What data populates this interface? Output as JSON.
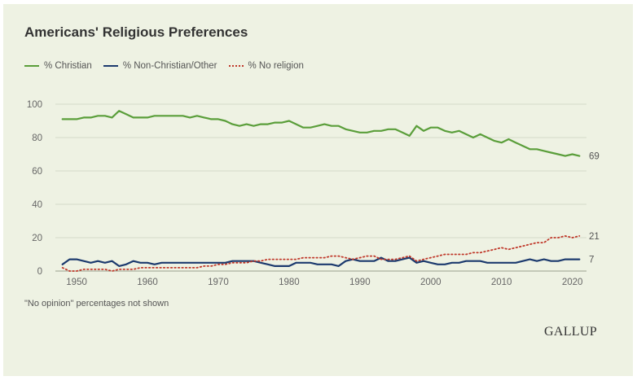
{
  "colors": {
    "background": "#eef2e3",
    "grid": "#d4d9c8",
    "axis_text": "#666666"
  },
  "chart_data": {
    "type": "line",
    "title": "Americans' Religious Preferences",
    "xlabel": "",
    "ylabel": "",
    "xlim": [
      1947,
      2022
    ],
    "ylim": [
      0,
      100
    ],
    "y_ticks": [
      0,
      20,
      40,
      60,
      80,
      100
    ],
    "x_ticks": [
      1950,
      1960,
      1970,
      1980,
      1990,
      2000,
      2010,
      2020
    ],
    "grid": true,
    "legend_position": "top-left",
    "series": [
      {
        "name": "% Christian",
        "color": "#5a9e3a",
        "style": "solid",
        "end_label": "69",
        "points": [
          [
            1948,
            91
          ],
          [
            1950,
            91
          ],
          [
            1951,
            92
          ],
          [
            1952,
            92
          ],
          [
            1953,
            93
          ],
          [
            1954,
            93
          ],
          [
            1955,
            92
          ],
          [
            1956,
            96
          ],
          [
            1957,
            94
          ],
          [
            1958,
            92
          ],
          [
            1960,
            92
          ],
          [
            1961,
            93
          ],
          [
            1965,
            93
          ],
          [
            1966,
            92
          ],
          [
            1967,
            93
          ],
          [
            1968,
            92
          ],
          [
            1969,
            91
          ],
          [
            1970,
            91
          ],
          [
            1971,
            90
          ],
          [
            1972,
            88
          ],
          [
            1973,
            87
          ],
          [
            1974,
            88
          ],
          [
            1975,
            87
          ],
          [
            1976,
            88
          ],
          [
            1977,
            88
          ],
          [
            1978,
            89
          ],
          [
            1979,
            89
          ],
          [
            1980,
            90
          ],
          [
            1981,
            88
          ],
          [
            1982,
            86
          ],
          [
            1983,
            86
          ],
          [
            1984,
            87
          ],
          [
            1985,
            88
          ],
          [
            1986,
            87
          ],
          [
            1987,
            87
          ],
          [
            1988,
            85
          ],
          [
            1989,
            84
          ],
          [
            1990,
            83
          ],
          [
            1991,
            83
          ],
          [
            1992,
            84
          ],
          [
            1993,
            84
          ],
          [
            1994,
            85
          ],
          [
            1995,
            85
          ],
          [
            1996,
            83
          ],
          [
            1997,
            81
          ],
          [
            1998,
            87
          ],
          [
            1999,
            84
          ],
          [
            2000,
            86
          ],
          [
            2001,
            86
          ],
          [
            2002,
            84
          ],
          [
            2003,
            83
          ],
          [
            2004,
            84
          ],
          [
            2005,
            82
          ],
          [
            2006,
            80
          ],
          [
            2007,
            82
          ],
          [
            2008,
            80
          ],
          [
            2009,
            78
          ],
          [
            2010,
            77
          ],
          [
            2011,
            79
          ],
          [
            2012,
            77
          ],
          [
            2013,
            75
          ],
          [
            2014,
            73
          ],
          [
            2015,
            73
          ],
          [
            2016,
            72
          ],
          [
            2017,
            71
          ],
          [
            2018,
            70
          ],
          [
            2019,
            69
          ],
          [
            2020,
            70
          ],
          [
            2021,
            69
          ]
        ]
      },
      {
        "name": "% Non-Christian/Other",
        "color": "#1c3a6e",
        "style": "solid",
        "end_label": "7",
        "points": [
          [
            1948,
            4
          ],
          [
            1949,
            7
          ],
          [
            1950,
            7
          ],
          [
            1951,
            6
          ],
          [
            1952,
            5
          ],
          [
            1953,
            6
          ],
          [
            1954,
            5
          ],
          [
            1955,
            6
          ],
          [
            1956,
            3
          ],
          [
            1957,
            4
          ],
          [
            1958,
            6
          ],
          [
            1959,
            5
          ],
          [
            1960,
            5
          ],
          [
            1961,
            4
          ],
          [
            1962,
            5
          ],
          [
            1970,
            5
          ],
          [
            1971,
            5
          ],
          [
            1972,
            6
          ],
          [
            1974,
            6
          ],
          [
            1975,
            6
          ],
          [
            1976,
            5
          ],
          [
            1977,
            4
          ],
          [
            1978,
            3
          ],
          [
            1979,
            3
          ],
          [
            1980,
            3
          ],
          [
            1981,
            5
          ],
          [
            1982,
            5
          ],
          [
            1983,
            5
          ],
          [
            1984,
            4
          ],
          [
            1985,
            4
          ],
          [
            1986,
            4
          ],
          [
            1987,
            3
          ],
          [
            1988,
            6
          ],
          [
            1989,
            7
          ],
          [
            1990,
            6
          ],
          [
            1991,
            6
          ],
          [
            1992,
            6
          ],
          [
            1993,
            8
          ],
          [
            1994,
            6
          ],
          [
            1995,
            6
          ],
          [
            1996,
            7
          ],
          [
            1997,
            8
          ],
          [
            1998,
            5
          ],
          [
            1999,
            6
          ],
          [
            2000,
            5
          ],
          [
            2001,
            4
          ],
          [
            2002,
            4
          ],
          [
            2003,
            5
          ],
          [
            2004,
            5
          ],
          [
            2005,
            6
          ],
          [
            2006,
            6
          ],
          [
            2007,
            6
          ],
          [
            2008,
            5
          ],
          [
            2009,
            5
          ],
          [
            2010,
            5
          ],
          [
            2011,
            5
          ],
          [
            2012,
            5
          ],
          [
            2013,
            6
          ],
          [
            2014,
            7
          ],
          [
            2015,
            6
          ],
          [
            2016,
            7
          ],
          [
            2017,
            6
          ],
          [
            2018,
            6
          ],
          [
            2019,
            7
          ],
          [
            2020,
            7
          ],
          [
            2021,
            7
          ]
        ]
      },
      {
        "name": "% No religion",
        "color": "#c0392b",
        "style": "dotted",
        "end_label": "21",
        "points": [
          [
            1948,
            2
          ],
          [
            1949,
            0
          ],
          [
            1950,
            0
          ],
          [
            1951,
            1
          ],
          [
            1953,
            1
          ],
          [
            1954,
            1
          ],
          [
            1955,
            0
          ],
          [
            1956,
            1
          ],
          [
            1957,
            1
          ],
          [
            1958,
            1
          ],
          [
            1959,
            2
          ],
          [
            1962,
            2
          ],
          [
            1967,
            2
          ],
          [
            1968,
            3
          ],
          [
            1969,
            3
          ],
          [
            1970,
            4
          ],
          [
            1971,
            4
          ],
          [
            1972,
            5
          ],
          [
            1973,
            5
          ],
          [
            1974,
            5
          ],
          [
            1975,
            6
          ],
          [
            1976,
            6
          ],
          [
            1977,
            7
          ],
          [
            1978,
            7
          ],
          [
            1979,
            7
          ],
          [
            1980,
            7
          ],
          [
            1981,
            7
          ],
          [
            1982,
            8
          ],
          [
            1983,
            8
          ],
          [
            1984,
            8
          ],
          [
            1985,
            8
          ],
          [
            1986,
            9
          ],
          [
            1987,
            9
          ],
          [
            1988,
            8
          ],
          [
            1989,
            7
          ],
          [
            1990,
            8
          ],
          [
            1991,
            9
          ],
          [
            1992,
            9
          ],
          [
            1993,
            7
          ],
          [
            1994,
            7
          ],
          [
            1995,
            7
          ],
          [
            1996,
            8
          ],
          [
            1997,
            9
          ],
          [
            1998,
            6
          ],
          [
            1999,
            7
          ],
          [
            2000,
            8
          ],
          [
            2001,
            9
          ],
          [
            2002,
            10
          ],
          [
            2003,
            10
          ],
          [
            2004,
            10
          ],
          [
            2005,
            10
          ],
          [
            2006,
            11
          ],
          [
            2007,
            11
          ],
          [
            2008,
            12
          ],
          [
            2009,
            13
          ],
          [
            2010,
            14
          ],
          [
            2011,
            13
          ],
          [
            2012,
            14
          ],
          [
            2013,
            15
          ],
          [
            2014,
            16
          ],
          [
            2015,
            17
          ],
          [
            2016,
            17
          ],
          [
            2017,
            20
          ],
          [
            2018,
            20
          ],
          [
            2019,
            21
          ],
          [
            2020,
            20
          ],
          [
            2021,
            21
          ]
        ]
      }
    ]
  },
  "note": "\"No opinion\" percentages not shown",
  "brand": "GALLUP"
}
